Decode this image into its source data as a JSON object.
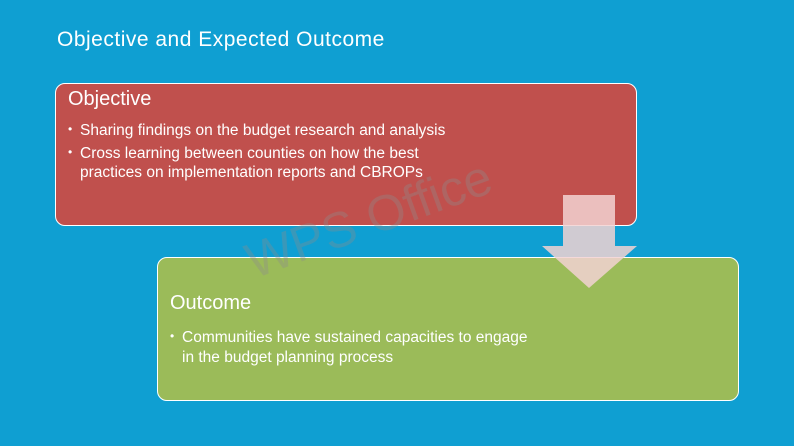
{
  "slide": {
    "title": "Objective and Expected Outcome",
    "objective": {
      "heading": "Objective",
      "bullets": [
        "Sharing findings on the budget research and analysis",
        "Cross learning between counties on how the best practices on implementation reports and CBROPs"
      ]
    },
    "outcome": {
      "heading": "Outcome",
      "bullets": [
        "Communities have sustained capacities to engage in the budget planning process"
      ]
    },
    "watermark": "WPS Office"
  }
}
